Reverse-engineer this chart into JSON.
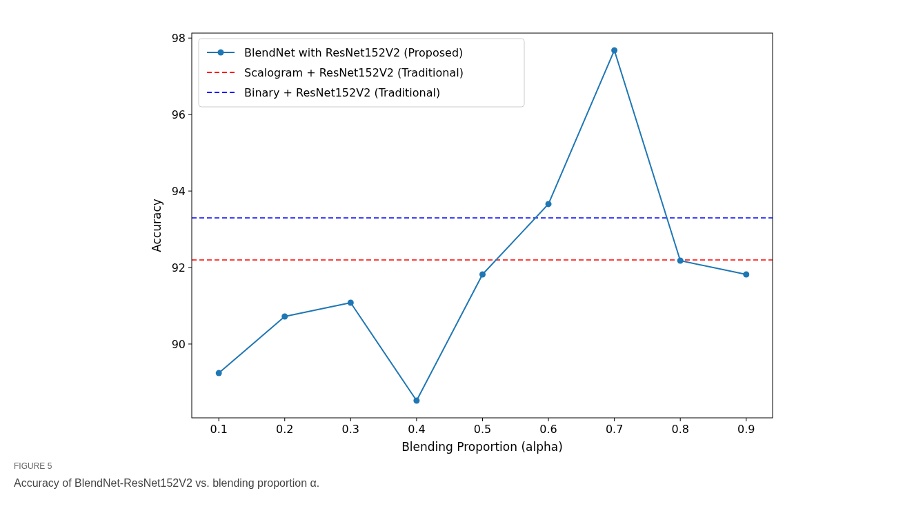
{
  "chart_data": {
    "type": "line",
    "xlabel": "Blending Proportion (alpha)",
    "ylabel": "Accuracy",
    "x": [
      0.1,
      0.2,
      0.3,
      0.4,
      0.5,
      0.6,
      0.7,
      0.8,
      0.9
    ],
    "series": [
      {
        "name": "BlendNet with ResNet152V2 (Proposed)",
        "color": "#1f77b4",
        "values": [
          89.24,
          90.72,
          91.08,
          88.52,
          91.82,
          93.66,
          97.68,
          92.18,
          91.82
        ]
      }
    ],
    "ref_lines": [
      {
        "axis": "y",
        "value": 92.2,
        "label": "Scalogram + ResNet152V2 (Traditional)",
        "color": "#ff0000",
        "line_style": "dashed"
      },
      {
        "axis": "y",
        "value": 93.3,
        "label": "Binary + ResNet152V2 (Traditional)",
        "color": "#0000ff",
        "line_style": "dashed"
      }
    ],
    "xlim": [
      0.059,
      0.94
    ],
    "ylim": [
      88.07,
      98.13
    ],
    "xticks": [
      0.1,
      0.2,
      0.3,
      0.4,
      0.5,
      0.6,
      0.7,
      0.8,
      0.9
    ],
    "yticks": [
      90,
      92,
      94,
      96,
      98
    ],
    "marker": "circle",
    "line_style": "solid",
    "grid": false,
    "legend": "top left",
    "annotations": [
      "FIGURE 5",
      "Accuracy of BlendNet-ResNet152V2 vs. blending proportion α."
    ]
  }
}
